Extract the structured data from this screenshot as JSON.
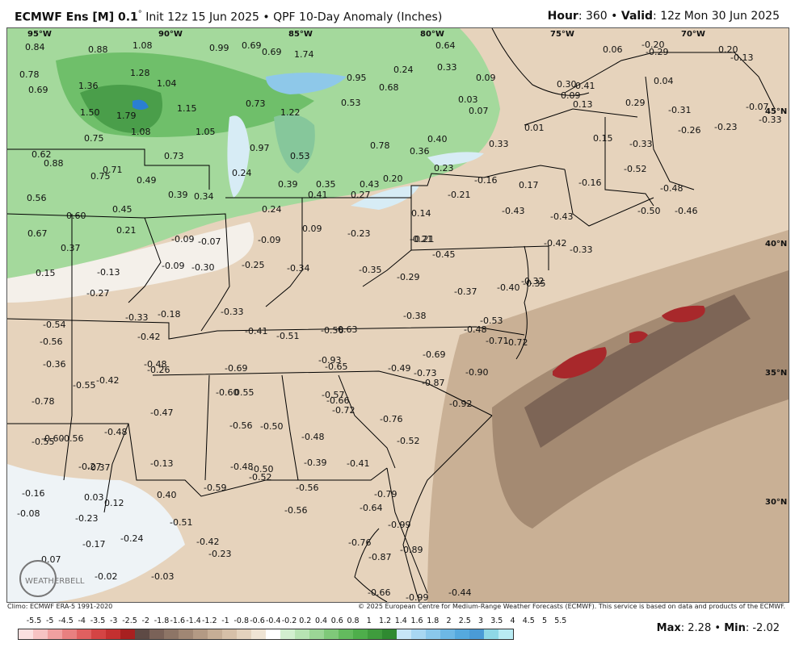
{
  "header": {
    "model": "ECMWF Ens [M] 0.1",
    "degree": "°",
    "init": "Init 12z 15 Jun 2025",
    "product": "QPF 10-Day Anomaly (Inches)",
    "hour_label": "Hour",
    "hour_value": ": 360",
    "valid_label": "Valid",
    "valid_value": ": 12z Mon 30 Jun 2025",
    "sep": "•"
  },
  "map": {
    "lon_labels": [
      "95°W",
      "90°W",
      "85°W",
      "80°W",
      "75°W",
      "70°W"
    ],
    "lat_labels": [
      "45°N",
      "40°N",
      "35°N",
      "30°N"
    ],
    "values": [
      "0.84",
      "0.88",
      "1.08",
      "0.99",
      "0.69",
      "1.74",
      "0.69",
      "0.64",
      "0.06",
      "-0.20",
      "-0.29",
      "0.20",
      "-0.13",
      "0.78",
      "0.69",
      "1.36",
      "1.28",
      "1.04",
      "0.95",
      "0.68",
      "0.24",
      "0.33",
      "0.09",
      "0.30",
      "0.41",
      "0.04",
      "1.50",
      "1.79",
      "1.15",
      "0.73",
      "1.22",
      "0.53",
      "0.03",
      "0.07",
      "0.09",
      "0.13",
      "0.29",
      "-0.31",
      "-0.07",
      "-0.33",
      "0.75",
      "1.08",
      "1.05",
      "0.97",
      "0.53",
      "0.78",
      "0.36",
      "0.40",
      "0.33",
      "0.01",
      "0.15",
      "-0.33",
      "-0.26",
      "-0.23",
      "0.62",
      "0.88",
      "0.75",
      "0.73",
      "0.24",
      "0.39",
      "0.35",
      "0.43",
      "0.20",
      "0.23",
      "-0.16",
      "0.17",
      "-0.52",
      "-0.16",
      "0.56",
      "0.71",
      "0.49",
      "0.39",
      "0.34",
      "0.41",
      "0.27",
      "-0.21",
      "-0.21",
      "-0.48",
      "-0.50",
      "-0.46",
      "0.60",
      "0.45",
      "0.24",
      "0.14",
      "-0.43",
      "-0.43",
      "0.67",
      "0.21",
      "-0.09",
      "-0.07",
      "-0.09",
      "0.09",
      "-0.23",
      "-0.21",
      "0.37",
      "-0.42",
      "-0.33",
      "-0.45",
      "0.15",
      "-0.13",
      "-0.09",
      "-0.30",
      "-0.25",
      "-0.34",
      "-0.35",
      "-0.29",
      "-0.32",
      "-0.27",
      "-0.37",
      "-0.40",
      "-0.35",
      "-0.33",
      "-0.18",
      "-0.33",
      "-0.38",
      "-0.53",
      "-0.54",
      "-0.56",
      "-0.42",
      "-0.41",
      "-0.51",
      "-0.56",
      "-0.63",
      "-0.48",
      "-0.71",
      "-0.72",
      "-0.36",
      "-0.48",
      "-0.93",
      "-0.69",
      "-0.26",
      "-0.69",
      "-0.65",
      "-0.49",
      "-0.73",
      "-0.90",
      "-0.42",
      "-0.55",
      "-0.87",
      "-0.60",
      "0.55",
      "-0.57",
      "-0.78",
      "-0.66",
      "-0.92",
      "-0.47",
      "-0.72",
      "-0.76",
      "-0.48",
      "-0.56",
      "-0.50",
      "-0.55",
      "-0.60",
      "-0.56",
      "-0.48",
      "-0.52",
      "-0.27",
      "-0.37",
      "-0.13",
      "-0.39",
      "-0.41",
      "-0.48",
      "-0.50",
      "-0.52",
      "-0.16",
      "0.03",
      "0.40",
      "-0.59",
      "-0.56",
      "-0.79",
      "0.12",
      "-0.08",
      "-0.23",
      "-0.51",
      "-0.56",
      "-0.64",
      "-0.17",
      "-0.24",
      "-0.42",
      "-0.99",
      "-0.76",
      "0.07",
      "-0.23",
      "-0.87",
      "-0.89",
      "-0.02",
      "-0.03",
      "-0.66",
      "-0.99",
      "-0.44"
    ]
  },
  "footer": {
    "climo": "Climo: ECMWF ERA-5 1991-2020",
    "copyright": "© 2025 European Centre for Medium-Range Weather Forecasts (ECMWF). This service is based on data and products of the ECMWF."
  },
  "legend": {
    "ticks": [
      "-5.5",
      "-5",
      "-4.5",
      "-4",
      "-3.5",
      "-3",
      "-2.5",
      "-2",
      "-1.8",
      "-1.6",
      "-1.4",
      "-1.2",
      "-1",
      "-0.8",
      "-0.6",
      "-0.4",
      "-0.2",
      "0.2",
      "0.4",
      "0.6",
      "0.8",
      "1",
      "1.2",
      "1.4",
      "1.6",
      "1.8",
      "2",
      "2.5",
      "3",
      "3.5",
      "4",
      "4.5",
      "5",
      "5.5"
    ],
    "colors": [
      "#fbe0e0",
      "#f7c3c3",
      "#f0a0a0",
      "#e88080",
      "#e06060",
      "#d44444",
      "#c43030",
      "#a82020",
      "#5e4a45",
      "#7a6258",
      "#8d7566",
      "#a08774",
      "#b39a84",
      "#c6ae96",
      "#d6c0a8",
      "#e3d2bd",
      "#efe4d4",
      "#ffffff",
      "#d2efcf",
      "#b7e3b3",
      "#9bd696",
      "#7fc979",
      "#63bb5e",
      "#4eae4b",
      "#3f9c3d",
      "#2f8a31",
      "#c7e6f7",
      "#a8d7f2",
      "#8ac8ec",
      "#6db8e5",
      "#55a9de",
      "#4a9bd6",
      "#8ed8e6",
      "#b9ecf4"
    ],
    "max_label": "Max",
    "max_value": ": 2.28",
    "min_label": "Min",
    "min_value": ": -2.02",
    "sep": "•"
  }
}
